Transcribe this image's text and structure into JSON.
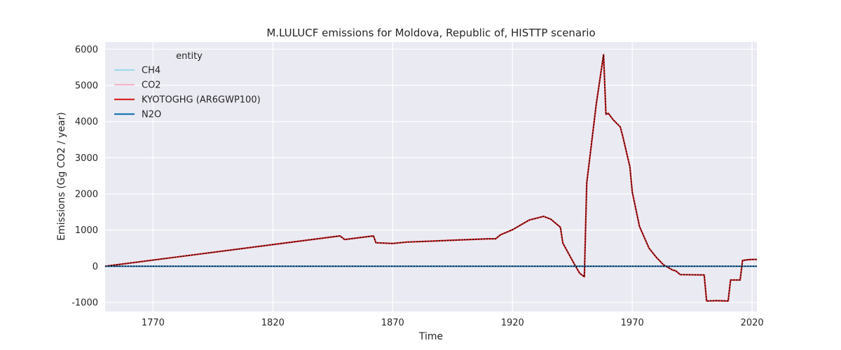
{
  "chart_data": {
    "type": "line",
    "title": "M.LULUCF emissions for Moldova, Republic of, HISTTP scenario",
    "xlabel": "Time",
    "ylabel": "Emissions (Gg CO2 / year)",
    "xlim": [
      1750,
      2022
    ],
    "ylim": [
      -1250,
      6200
    ],
    "xticks": [
      1770,
      1820,
      1870,
      1920,
      1970,
      2020
    ],
    "yticks": [
      -1000,
      0,
      1000,
      2000,
      3000,
      4000,
      5000,
      6000
    ],
    "grid": true,
    "legend": {
      "title": "entity",
      "placement": "top-left"
    },
    "series": [
      {
        "name": "CH4",
        "color": "#9ddbe8",
        "x": [
          1750,
          2022
        ],
        "y": [
          0,
          0
        ]
      },
      {
        "name": "CO2",
        "color": "#f4b6cc",
        "x": [
          1750,
          1848,
          1850,
          1862,
          1863,
          1870,
          1876,
          1880,
          1910,
          1913,
          1915,
          1920,
          1927,
          1933,
          1936,
          1940,
          1941,
          1944,
          1946,
          1948,
          1950,
          1951,
          1955,
          1958,
          1959,
          1960,
          1962,
          1965,
          1966,
          1969,
          1970,
          1973,
          1975,
          1977,
          1980,
          1983,
          1987,
          1988,
          1990,
          2000,
          2001,
          2005,
          2010,
          2011,
          2015,
          2016,
          2018,
          2020,
          2022
        ],
        "y": [
          0,
          840,
          740,
          840,
          650,
          630,
          670,
          680,
          760,
          760,
          870,
          1010,
          1280,
          1380,
          1300,
          1080,
          640,
          280,
          40,
          -190,
          -290,
          2300,
          4500,
          5850,
          4200,
          4230,
          4050,
          3850,
          3600,
          2750,
          2050,
          1100,
          800,
          500,
          250,
          40,
          -110,
          -120,
          -230,
          -240,
          -960,
          -950,
          -960,
          -380,
          -380,
          160,
          180,
          190,
          190
        ]
      },
      {
        "name": "KYOTOGHG (AR6GWP100)",
        "color": "#d62728",
        "x": [
          1750,
          1848,
          1850,
          1862,
          1863,
          1870,
          1876,
          1880,
          1910,
          1913,
          1915,
          1920,
          1927,
          1933,
          1936,
          1940,
          1941,
          1944,
          1946,
          1948,
          1950,
          1951,
          1955,
          1958,
          1959,
          1960,
          1962,
          1965,
          1966,
          1969,
          1970,
          1973,
          1975,
          1977,
          1980,
          1983,
          1987,
          1988,
          1990,
          2000,
          2001,
          2005,
          2010,
          2011,
          2015,
          2016,
          2018,
          2020,
          2022
        ],
        "y": [
          0,
          840,
          740,
          840,
          650,
          630,
          670,
          680,
          760,
          760,
          870,
          1010,
          1280,
          1380,
          1300,
          1080,
          640,
          280,
          40,
          -190,
          -290,
          2300,
          4500,
          5850,
          4200,
          4230,
          4050,
          3850,
          3600,
          2750,
          2050,
          1100,
          800,
          500,
          250,
          40,
          -110,
          -120,
          -230,
          -240,
          -960,
          -950,
          -960,
          -380,
          -380,
          160,
          180,
          190,
          190
        ]
      },
      {
        "name": "N2O",
        "color": "#1f77b4",
        "x": [
          1750,
          2022
        ],
        "y": [
          0,
          0
        ]
      }
    ]
  }
}
